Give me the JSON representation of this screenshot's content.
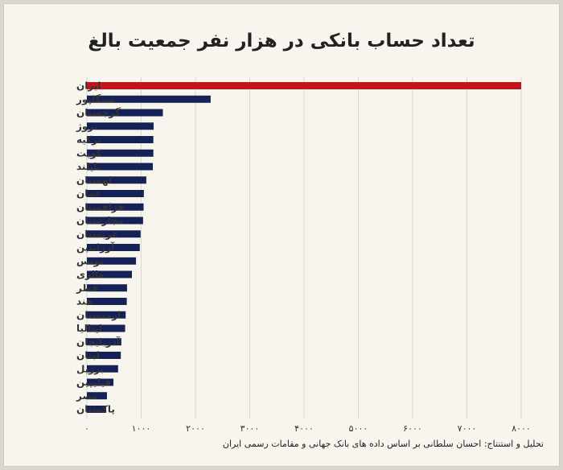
{
  "chart_data": {
    "type": "bar",
    "orientation": "horizontal",
    "title": "تعداد حساب بانکی در هزار نفر جمعیت بالغ",
    "categories": [
      "ایران",
      "سنگاپور",
      "گرجستان",
      "نروژ",
      "ترکیه",
      "کویت",
      "تایلند",
      "لهستان",
      "عمان",
      "قزاقستان",
      "مجارستان",
      "عربستان",
      "آرژانتین",
      "تونس",
      "مالزی",
      "قطر",
      "هند",
      "ارمنستان",
      "ایتالیا",
      "آذربایجان",
      "لبنان",
      "برزیل",
      "فیلیپین",
      "مصر",
      "پاکستان"
    ],
    "values": [
      8000,
      2280,
      1400,
      1230,
      1225,
      1225,
      1215,
      1095,
      1050,
      1045,
      1035,
      990,
      975,
      905,
      830,
      740,
      735,
      715,
      705,
      635,
      625,
      575,
      490,
      370,
      355
    ],
    "highlight": "ایران",
    "xlim": [
      0,
      8000
    ],
    "xticks": [
      0,
      1000,
      2000,
      3000,
      4000,
      5000,
      6000,
      7000,
      8000
    ],
    "xtick_labels": [
      "۰",
      "۱۰۰۰",
      "۲۰۰۰",
      "۳۰۰۰",
      "۴۰۰۰",
      "۵۰۰۰",
      "۶۰۰۰",
      "۷۰۰۰",
      "۸۰۰۰"
    ],
    "xlabel": "",
    "ylabel": "",
    "grid": true,
    "colors": {
      "highlight": "#c0151d",
      "default": "#142257",
      "grid": "#dcd6cd"
    }
  },
  "credit": "تحلیل و استنتاج: احسان سلطانی بر اساس داده های بانک جهانی و مقامات رسمی ایران"
}
